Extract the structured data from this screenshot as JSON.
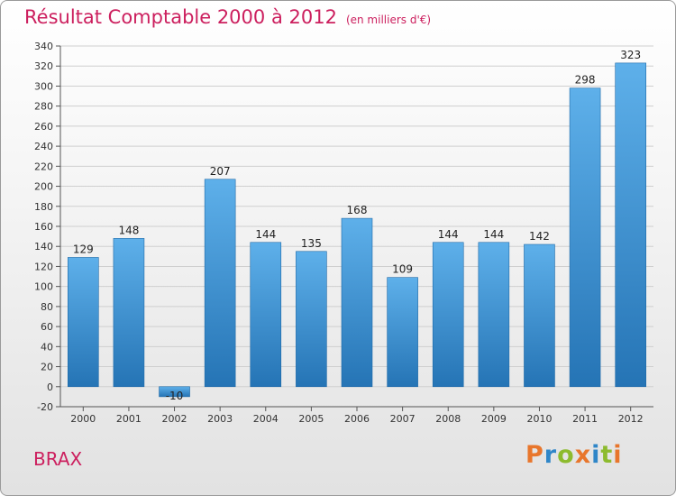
{
  "header": {
    "title": "Résultat Comptable 2000 à 2012",
    "subtitle": "(en milliers d'€)"
  },
  "footer": {
    "commune": "BRAX",
    "logo_text": "Proxiti",
    "logo_colors": [
      "#e8762c",
      "#2f86c8",
      "#8dbb2e",
      "#e8762c",
      "#2f86c8",
      "#8dbb2e",
      "#e8762c"
    ]
  },
  "colors": {
    "bar_top": "#5eb0ea",
    "bar_bottom": "#2574b5",
    "bar_stroke": "#1f6aa8",
    "grid": "#cfcfcf",
    "title": "#cc1f5e"
  },
  "chart_data": {
    "type": "bar",
    "title": "Résultat Comptable 2000 à 2012",
    "subtitle": "(en milliers d'€)",
    "xlabel": "",
    "ylabel": "",
    "categories": [
      "2000",
      "2001",
      "2002",
      "2003",
      "2004",
      "2005",
      "2006",
      "2007",
      "2008",
      "2009",
      "2010",
      "2011",
      "2012"
    ],
    "values": [
      129,
      148,
      -10,
      207,
      144,
      135,
      168,
      109,
      144,
      144,
      142,
      298,
      323
    ],
    "data_labels": [
      "129",
      "148",
      "-10",
      "207",
      "144",
      "135",
      "168",
      "109",
      "144",
      "144",
      "142",
      "298",
      "323"
    ],
    "ylim": [
      -20,
      340
    ],
    "yticks": [
      -20,
      0,
      20,
      40,
      60,
      80,
      100,
      120,
      140,
      160,
      180,
      200,
      220,
      240,
      260,
      280,
      300,
      320,
      340
    ],
    "grid": true,
    "legend": "none"
  }
}
